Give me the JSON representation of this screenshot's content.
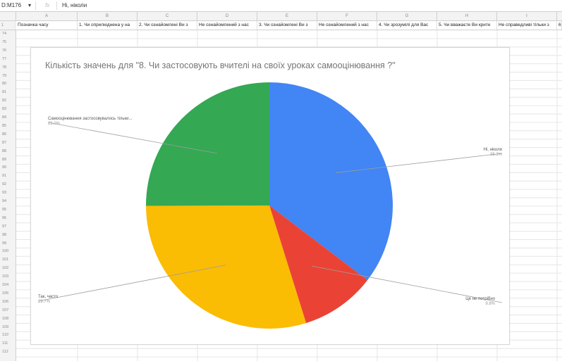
{
  "formula_bar": {
    "cell_ref": "D:M176",
    "dropdown_icon": "chevron-down-icon",
    "fx_label": "fx",
    "cell_value": "Ні, ніколи"
  },
  "columns": [
    "A",
    "B",
    "C",
    "D",
    "E",
    "F",
    "G",
    "H",
    "I"
  ],
  "header_row": {
    "row_number": "1",
    "cells": [
      "Позначка часу",
      "1. Чи оприлюднена у на",
      "2. Чи ознайомлені Ви з",
      "Не ознайомлений з нас",
      "3. Чи ознайомлені Ви з",
      "Не ознайомлений з нас",
      "4. Чи зрозумілі для Вас",
      "5. Чи вважаєте Ви крите",
      "Не справедливі тільки з",
      "6. Ч"
    ]
  },
  "row_numbers": [
    "74",
    "75",
    "76",
    "77",
    "78",
    "79",
    "80",
    "81",
    "82",
    "83",
    "84",
    "85",
    "86",
    "87",
    "88",
    "89",
    "90",
    "91",
    "92",
    "93",
    "94",
    "95",
    "96",
    "97",
    "98",
    "99",
    "100",
    "101",
    "102",
    "103",
    "104",
    "105",
    "106",
    "107",
    "108",
    "109",
    "110",
    "111",
    "112"
  ],
  "chart": {
    "title": "Кількість значень для \"8. Чи застосовують вчителі на своїх уроках самооцінювання ?\"",
    "chart_data": {
      "type": "pie",
      "title": "Кількість значень для \"8. Чи застосовують вчителі на своїх уроках самооцінювання ?\"",
      "slices": [
        {
          "label": "Ні, ніколи",
          "pct_label": "35.3%",
          "value": 35.3,
          "color": "#4285f4"
        },
        {
          "label": "Це не потрібно",
          "pct_label": "9.8%",
          "value": 9.8,
          "color": "#ea4335"
        },
        {
          "label": "Так, часто",
          "pct_label": "29.7%",
          "value": 29.7,
          "color": "#fbbc04"
        },
        {
          "label": "Самооцінювання застосовувалось тільки...",
          "pct_label": "25.0%",
          "value": 25.0,
          "color": "#34a853"
        }
      ],
      "start_angle_deg": 0,
      "direction": "clockwise",
      "legend": "labels with leader lines"
    }
  }
}
